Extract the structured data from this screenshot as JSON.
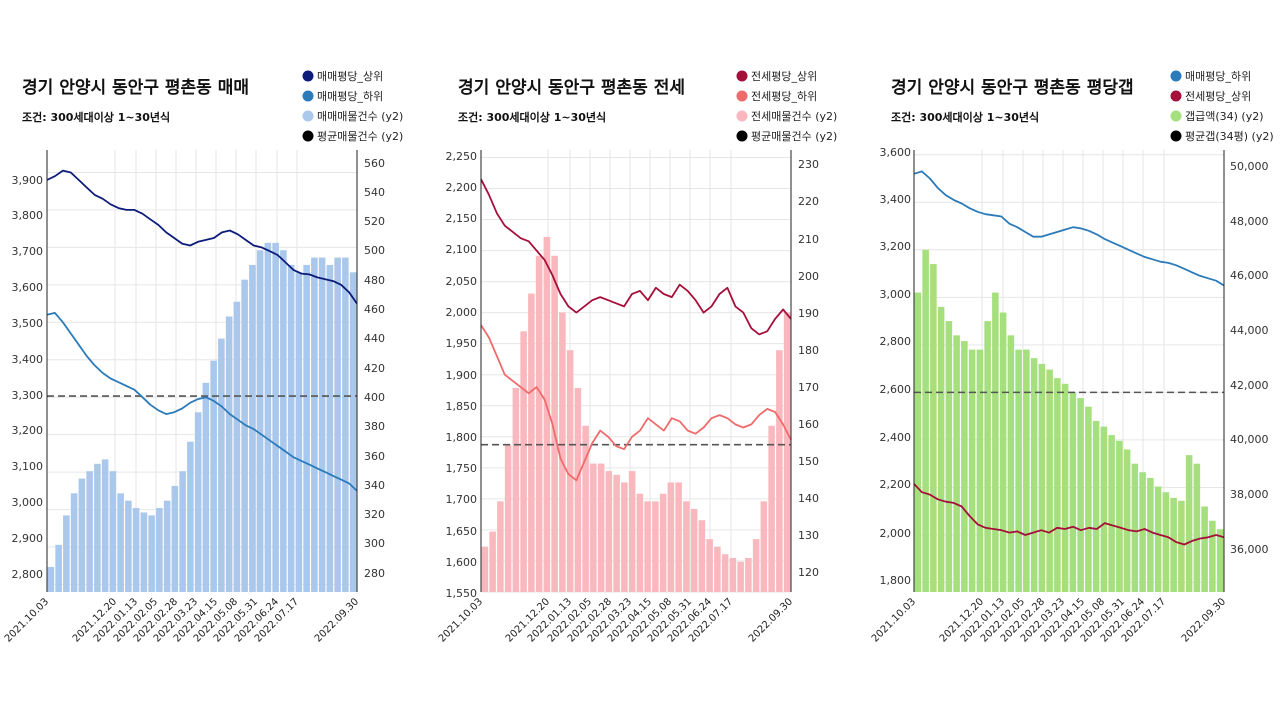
{
  "charts": [
    {
      "title": "경기 안양시 동안구 평촌동 매매",
      "subtitle": "조건: 300세대이상 1~30년식",
      "legend": [
        {
          "label": "매매평당_상위",
          "color": "#0d1b7a"
        },
        {
          "label": "매매평당_하위",
          "color": "#2b7bba"
        },
        {
          "label": "매매매물건수 (y2)",
          "color": "#a9c8eb"
        },
        {
          "label": "평균매물건수 (y2)",
          "color": "#000000"
        }
      ],
      "y_ticks": [
        "3,900",
        "3,800",
        "3,700",
        "3,600",
        "3,500",
        "3,400",
        "3,300",
        "3,200",
        "3,100",
        "3,000",
        "2,900",
        "2,800"
      ],
      "y2_ticks": [
        "560",
        "540",
        "520",
        "500",
        "480",
        "460",
        "440",
        "420",
        "400",
        "380",
        "360",
        "340",
        "320",
        "300",
        "280"
      ],
      "x_ticks": [
        "2021.10.03",
        "2021.12.20",
        "2022.01.13",
        "2022.02.05",
        "2022.02.28",
        "2022.03.23",
        "2022.04.15",
        "2022.05.08",
        "2022.05.31",
        "2022.06.24",
        "2022.07.17",
        "2022.09.30"
      ]
    },
    {
      "title": "경기 안양시 동안구 평촌동 전세",
      "subtitle": "조건: 300세대이상 1~30년식",
      "legend": [
        {
          "label": "전세평당_상위",
          "color": "#a50f3a"
        },
        {
          "label": "전세평당_하위",
          "color": "#ef6b6b"
        },
        {
          "label": "전세매물건수 (y2)",
          "color": "#f9b8bd"
        },
        {
          "label": "평균매물건수 (y2)",
          "color": "#000000"
        }
      ],
      "y_ticks": [
        "2,250",
        "2,200",
        "2,150",
        "2,100",
        "2,050",
        "2,000",
        "1,950",
        "1,900",
        "1,850",
        "1,800",
        "1,750",
        "1,700",
        "1,650",
        "1,600",
        "1,550"
      ],
      "y2_ticks": [
        "230",
        "220",
        "210",
        "200",
        "190",
        "180",
        "170",
        "160",
        "150",
        "140",
        "130",
        "120"
      ],
      "x_ticks": [
        "2021.10.03",
        "2021.12.20",
        "2022.01.13",
        "2022.02.05",
        "2022.02.28",
        "2022.03.23",
        "2022.04.15",
        "2022.05.08",
        "2022.05.31",
        "2022.06.24",
        "2022.07.17",
        "2022.09.30"
      ]
    },
    {
      "title": "경기 안양시 동안구 평촌동 평당갭",
      "subtitle": "조건: 300세대이상 1~30년식",
      "legend": [
        {
          "label": "매매평당_하위",
          "color": "#2b7bba"
        },
        {
          "label": "전세평당_상위",
          "color": "#a50f3a"
        },
        {
          "label": "갭급액(34) (y2)",
          "color": "#a6e07e"
        },
        {
          "label": "평균갭(34평) (y2)",
          "color": "#000000"
        }
      ],
      "y_ticks": [
        "3,600",
        "3,400",
        "3,200",
        "3,000",
        "2,800",
        "2,600",
        "2,400",
        "2,200",
        "2,000",
        "1,800"
      ],
      "y2_ticks": [
        "50,000",
        "48,000",
        "46,000",
        "44,000",
        "42,000",
        "40,000",
        "38,000",
        "36,000"
      ],
      "x_ticks": [
        "2021.10.03",
        "2021.12.20",
        "2022.01.13",
        "2022.02.05",
        "2022.02.28",
        "2022.03.23",
        "2022.04.15",
        "2022.05.08",
        "2022.05.31",
        "2022.06.24",
        "2022.07.17",
        "2022.09.30"
      ]
    }
  ],
  "chart_data": [
    {
      "type": "bar",
      "title": "경기 안양시 동안구 평촌동 매매",
      "ylim": [
        2780,
        3960
      ],
      "y2lim": [
        268,
        568
      ],
      "x_range": [
        "2021.10.03",
        "2022.09.30"
      ],
      "series": [
        {
          "name": "매매평당_상위",
          "axis": "y",
          "kind": "line",
          "color": "#0d1b7a",
          "values": [
            3880,
            3890,
            3905,
            3900,
            3880,
            3860,
            3840,
            3830,
            3815,
            3805,
            3800,
            3800,
            3790,
            3775,
            3760,
            3740,
            3725,
            3710,
            3705,
            3715,
            3720,
            3725,
            3740,
            3745,
            3735,
            3720,
            3705,
            3700,
            3690,
            3680,
            3660,
            3640,
            3630,
            3628,
            3620,
            3615,
            3610,
            3600,
            3580,
            3550
          ]
        },
        {
          "name": "매매평당_하위",
          "axis": "y",
          "kind": "line",
          "color": "#2b7bba",
          "values": [
            3520,
            3525,
            3500,
            3470,
            3440,
            3410,
            3385,
            3365,
            3350,
            3340,
            3330,
            3320,
            3300,
            3280,
            3265,
            3255,
            3260,
            3270,
            3285,
            3295,
            3300,
            3290,
            3275,
            3255,
            3240,
            3225,
            3215,
            3200,
            3185,
            3170,
            3155,
            3140,
            3130,
            3120,
            3110,
            3100,
            3090,
            3080,
            3070,
            3050
          ]
        },
        {
          "name": "매매매물건수 (y2)",
          "axis": "y2",
          "kind": "bar",
          "color": "#a9c8eb",
          "values": [
            285,
            300,
            320,
            335,
            345,
            350,
            355,
            358,
            350,
            335,
            330,
            325,
            322,
            320,
            325,
            330,
            340,
            350,
            370,
            390,
            410,
            425,
            440,
            455,
            465,
            480,
            490,
            500,
            505,
            505,
            500,
            490,
            485,
            490,
            495,
            495,
            490,
            495,
            495,
            485
          ]
        },
        {
          "name": "평균매물건수 (y2)",
          "axis": "y2",
          "kind": "hline",
          "color": "#000000",
          "value": 401
        }
      ]
    },
    {
      "type": "bar",
      "title": "경기 안양시 동안구 평촌동 전세",
      "ylim": [
        1550,
        2262
      ],
      "y2lim": [
        116,
        233
      ],
      "x_range": [
        "2021.10.03",
        "2022.09.30"
      ],
      "series": [
        {
          "name": "전세평당_상위",
          "axis": "y",
          "kind": "line",
          "color": "#a50f3a",
          "values": [
            2215,
            2190,
            2160,
            2140,
            2130,
            2120,
            2115,
            2100,
            2085,
            2060,
            2030,
            2010,
            2000,
            2010,
            2020,
            2025,
            2020,
            2015,
            2010,
            2030,
            2035,
            2020,
            2040,
            2030,
            2025,
            2045,
            2035,
            2020,
            2000,
            2010,
            2030,
            2040,
            2010,
            2000,
            1975,
            1965,
            1970,
            1990,
            2005,
            1990
          ]
        },
        {
          "name": "전세평당_하위",
          "axis": "y",
          "kind": "line",
          "color": "#ef6b6b",
          "values": [
            1980,
            1960,
            1930,
            1900,
            1890,
            1880,
            1870,
            1880,
            1860,
            1820,
            1765,
            1740,
            1730,
            1760,
            1790,
            1810,
            1800,
            1785,
            1780,
            1800,
            1810,
            1830,
            1820,
            1810,
            1830,
            1825,
            1810,
            1805,
            1815,
            1830,
            1835,
            1830,
            1820,
            1815,
            1820,
            1835,
            1845,
            1840,
            1820,
            1795
          ]
        },
        {
          "name": "전세매물건수 (y2)",
          "axis": "y2",
          "kind": "bar",
          "color": "#f9b8bd",
          "values": [
            128,
            132,
            140,
            155,
            170,
            185,
            195,
            205,
            210,
            205,
            190,
            180,
            170,
            160,
            150,
            150,
            148,
            147,
            145,
            148,
            142,
            140,
            140,
            142,
            145,
            145,
            140,
            138,
            135,
            130,
            128,
            126,
            125,
            124,
            125,
            130,
            140,
            160,
            180,
            190
          ]
        },
        {
          "name": "평균매물건수 (y2)",
          "axis": "y2",
          "kind": "hline",
          "color": "#000000",
          "value": 155
        }
      ]
    },
    {
      "type": "bar",
      "title": "경기 안양시 동안구 평촌동 평당갭",
      "ylim": [
        1760,
        3620
      ],
      "y2lim": [
        35000,
        50500
      ],
      "x_range": [
        "2021.10.03",
        "2022.09.30"
      ],
      "series": [
        {
          "name": "매매평당_하위",
          "axis": "y",
          "kind": "line",
          "color": "#2b7bba",
          "values": [
            3520,
            3530,
            3500,
            3460,
            3430,
            3410,
            3395,
            3375,
            3360,
            3350,
            3345,
            3340,
            3310,
            3295,
            3275,
            3255,
            3255,
            3265,
            3275,
            3285,
            3295,
            3290,
            3280,
            3265,
            3245,
            3230,
            3215,
            3200,
            3185,
            3170,
            3160,
            3150,
            3145,
            3135,
            3120,
            3105,
            3090,
            3080,
            3070,
            3050
          ]
        },
        {
          "name": "전세평당_상위",
          "axis": "y",
          "kind": "line",
          "color": "#a50f3a",
          "values": [
            2215,
            2180,
            2170,
            2150,
            2140,
            2135,
            2120,
            2080,
            2045,
            2030,
            2025,
            2020,
            2010,
            2015,
            2000,
            2010,
            2020,
            2010,
            2030,
            2025,
            2035,
            2020,
            2030,
            2025,
            2050,
            2040,
            2030,
            2020,
            2015,
            2025,
            2010,
            2000,
            1990,
            1970,
            1960,
            1975,
            1985,
            1990,
            2000,
            1990
          ]
        },
        {
          "name": "갭급액(34) (y2)",
          "axis": "y2",
          "kind": "bar",
          "color": "#a6e07e",
          "values": [
            45500,
            47000,
            46500,
            45000,
            44500,
            44000,
            43800,
            43500,
            43500,
            44500,
            45500,
            44800,
            44000,
            43500,
            43500,
            43200,
            43000,
            42800,
            42500,
            42300,
            42000,
            41800,
            41500,
            41000,
            40800,
            40500,
            40300,
            40000,
            39500,
            39200,
            39000,
            38700,
            38500,
            38300,
            38200,
            39800,
            39500,
            38000,
            37500,
            37200
          ]
        },
        {
          "name": "평균갭(34평) (y2)",
          "axis": "y2",
          "kind": "hline",
          "color": "#000000",
          "value": 42000
        }
      ]
    }
  ]
}
